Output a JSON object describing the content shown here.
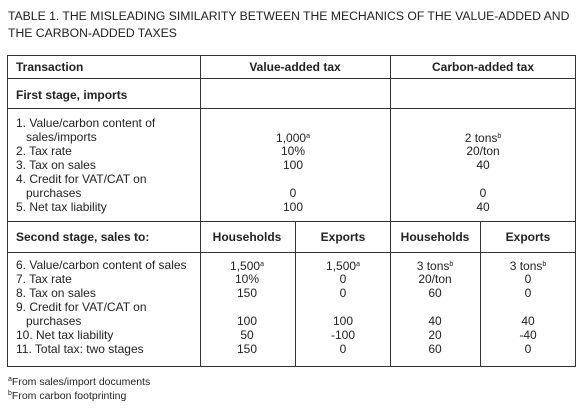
{
  "title": "TABLE 1. THE MISLEADING SIMILARITY BETWEEN THE MECHANICS OF THE VALUE-ADDED AND THE CARBON-ADDED TAXES",
  "header": {
    "transaction": "Transaction",
    "vat": "Value-added tax",
    "cat": "Carbon-added tax"
  },
  "first_stage": {
    "heading": "First stage, imports",
    "rows": [
      {
        "label": [
          "1. Value/carbon content of",
          "sales/imports"
        ],
        "cells": [
          {
            "text": "1,000",
            "note": "a"
          },
          {
            "text": "2 tons",
            "note": "b"
          }
        ]
      },
      {
        "label": [
          "2. Tax rate"
        ],
        "cells": [
          {
            "text": "10%"
          },
          {
            "text": "20/ton"
          }
        ]
      },
      {
        "label": [
          "3. Tax on sales"
        ],
        "cells": [
          {
            "text": "100"
          },
          {
            "text": "40"
          }
        ]
      },
      {
        "label": [
          "4. Credit for VAT/CAT on",
          "purchases"
        ],
        "cells": [
          {
            "text": "0"
          },
          {
            "text": "0"
          }
        ]
      },
      {
        "label": [
          "5. Net tax liability"
        ],
        "cells": [
          {
            "text": "100"
          },
          {
            "text": "40"
          }
        ]
      }
    ]
  },
  "second_stage": {
    "heading": "Second stage, sales to:",
    "columns": [
      "Households",
      "Exports",
      "Households",
      "Exports"
    ],
    "rows": [
      {
        "label": [
          "6. Value/carbon content of sales"
        ],
        "cells": [
          {
            "text": "1,500",
            "note": "a"
          },
          {
            "text": "1,500",
            "note": "a"
          },
          {
            "text": "3 tons",
            "note": "b"
          },
          {
            "text": "3 tons",
            "note": "b"
          }
        ]
      },
      {
        "label": [
          "7. Tax rate"
        ],
        "cells": [
          {
            "text": "10%"
          },
          {
            "text": "0"
          },
          {
            "text": "20/ton"
          },
          {
            "text": "0"
          }
        ]
      },
      {
        "label": [
          "8. Tax on sales"
        ],
        "cells": [
          {
            "text": "150"
          },
          {
            "text": "0"
          },
          {
            "text": "60"
          },
          {
            "text": "0"
          }
        ]
      },
      {
        "label": [
          "9. Credit for VAT/CAT on",
          "purchases"
        ],
        "cells": [
          {
            "text": "100"
          },
          {
            "text": "100"
          },
          {
            "text": "40"
          },
          {
            "text": "40"
          }
        ]
      },
      {
        "label": [
          "10. Net tax liability"
        ],
        "cells": [
          {
            "text": "50"
          },
          {
            "text": "-100"
          },
          {
            "text": "20"
          },
          {
            "text": "-40"
          }
        ]
      },
      {
        "label": [
          "11. Total tax: two stages"
        ],
        "cells": [
          {
            "text": "150"
          },
          {
            "text": "0"
          },
          {
            "text": "60"
          },
          {
            "text": "0"
          }
        ]
      }
    ]
  },
  "footnotes": [
    {
      "mark": "a",
      "text": "From sales/import documents"
    },
    {
      "mark": "b",
      "text": "From carbon footprinting"
    }
  ]
}
